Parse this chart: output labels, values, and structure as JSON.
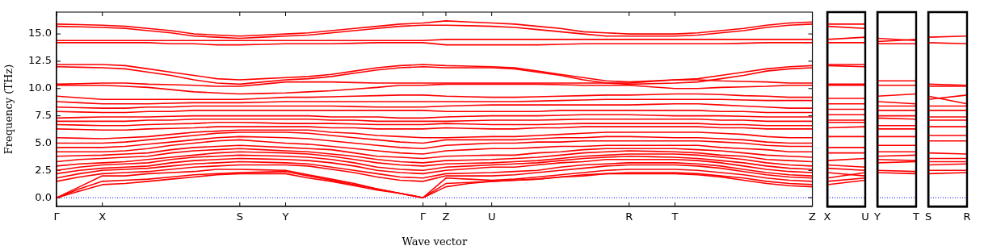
{
  "chart_data": [
    {
      "type": "line",
      "xlabel": "Wave vector",
      "ylabel": "Frequency (THz)",
      "color": "#ff0000",
      "categories": [
        "Γ",
        null,
        "X",
        null,
        null,
        null,
        null,
        null,
        "S",
        null,
        "Y",
        null,
        null,
        null,
        null,
        null,
        "Γ",
        "Z",
        null,
        "U",
        null,
        null,
        null,
        null,
        null,
        "R",
        null,
        "T",
        null,
        null,
        null,
        null,
        null,
        "Z"
      ],
      "ylim": [
        -0.8,
        17
      ],
      "yticks": [
        {
          "value": 0,
          "label": "0.0"
        },
        {
          "value": 2.5,
          "label": "2.5"
        },
        {
          "value": 5,
          "label": "5.0"
        },
        {
          "value": 7.5,
          "label": "7.5"
        },
        {
          "value": 10,
          "label": "10.0"
        },
        {
          "value": 12.5,
          "label": "12.5"
        },
        {
          "value": 15,
          "label": "15.0"
        }
      ],
      "ref_lines": [
        {
          "axis": "y",
          "value": 0,
          "color": "#0000ff",
          "line_style": "dotted"
        }
      ],
      "series": [
        {
          "values": [
            0,
            0.6,
            1.2,
            1.3,
            1.5,
            1.7,
            1.9,
            2.1,
            2.2,
            2.2,
            2.2,
            1.8,
            1.5,
            1.1,
            0.7,
            0.4,
            0,
            1.0,
            1.3,
            1.5,
            1.6,
            1.7,
            1.9,
            2.0,
            2.2,
            2.2,
            2.2,
            2.2,
            2.1,
            1.9,
            1.6,
            1.3,
            1.1,
            1.0
          ]
        },
        {
          "values": [
            0,
            0.8,
            1.5,
            1.6,
            1.7,
            1.9,
            2.1,
            2.2,
            2.3,
            2.35,
            2.4,
            2.0,
            1.6,
            1.2,
            0.8,
            0.4,
            0,
            1.3,
            1.4,
            1.5,
            1.6,
            1.7,
            1.9,
            2.1,
            2.2,
            2.3,
            2.3,
            2.3,
            2.2,
            2.0,
            1.8,
            1.5,
            1.3,
            1.2
          ]
        },
        {
          "values": [
            0,
            1.0,
            2.0,
            2.0,
            2.2,
            2.3,
            2.4,
            2.6,
            2.6,
            2.55,
            2.5,
            2.1,
            1.7,
            1.3,
            0.8,
            0.4,
            0,
            1.8,
            1.7,
            1.6,
            1.7,
            1.9,
            2.1,
            2.3,
            2.5,
            2.6,
            2.6,
            2.6,
            2.5,
            2.3,
            2.1,
            1.8,
            1.6,
            1.5
          ]
        },
        {
          "values": [
            1.5,
            1.9,
            2.2,
            2.3,
            2.4,
            2.6,
            2.8,
            2.9,
            3.0,
            3.0,
            3.0,
            2.9,
            2.6,
            2.3,
            1.9,
            1.6,
            1.5,
            2.0,
            2.0,
            2.0,
            2.1,
            2.3,
            2.5,
            2.7,
            2.9,
            3.0,
            3.0,
            3.0,
            2.9,
            2.7,
            2.4,
            2.1,
            1.9,
            1.8
          ]
        },
        {
          "values": [
            1.8,
            2.2,
            2.5,
            2.6,
            2.7,
            2.9,
            3.1,
            3.2,
            3.3,
            3.25,
            3.2,
            3.1,
            2.8,
            2.5,
            2.2,
            1.9,
            1.8,
            2.2,
            2.25,
            2.3,
            2.4,
            2.5,
            2.8,
            3.0,
            3.1,
            3.2,
            3.2,
            3.2,
            3.1,
            2.9,
            2.6,
            2.3,
            2.1,
            2.0
          ]
        },
        {
          "values": [
            2.2,
            2.5,
            2.7,
            2.8,
            2.9,
            3.2,
            3.4,
            3.5,
            3.6,
            3.55,
            3.5,
            3.4,
            3.2,
            2.9,
            2.5,
            2.3,
            2.2,
            2.5,
            2.65,
            2.8,
            2.8,
            3.0,
            3.2,
            3.3,
            3.5,
            3.5,
            3.5,
            3.5,
            3.4,
            3.2,
            2.9,
            2.6,
            2.4,
            2.3
          ]
        },
        {
          "values": [
            2.5,
            2.8,
            3.0,
            3.1,
            3.2,
            3.5,
            3.7,
            3.8,
            3.9,
            3.85,
            3.8,
            3.7,
            3.5,
            3.2,
            2.8,
            2.6,
            2.5,
            2.8,
            2.9,
            3.0,
            3.1,
            3.2,
            3.4,
            3.6,
            3.7,
            3.8,
            3.75,
            3.7,
            3.6,
            3.4,
            3.2,
            2.9,
            2.7,
            2.6
          ]
        },
        {
          "values": [
            2.9,
            3.1,
            3.2,
            3.3,
            3.5,
            3.7,
            3.9,
            4.1,
            4.2,
            4.15,
            4.1,
            4.0,
            3.8,
            3.5,
            3.2,
            3.0,
            2.9,
            3.1,
            3.15,
            3.2,
            3.3,
            3.4,
            3.6,
            3.8,
            3.9,
            4.0,
            4.0,
            4.0,
            3.9,
            3.7,
            3.5,
            3.2,
            3.0,
            2.9
          ]
        },
        {
          "values": [
            3.3,
            3.5,
            3.6,
            3.7,
            3.8,
            4.1,
            4.3,
            4.4,
            4.5,
            4.4,
            4.3,
            4.2,
            4.0,
            3.8,
            3.5,
            3.3,
            3.2,
            3.4,
            3.45,
            3.5,
            3.6,
            3.7,
            3.9,
            4.1,
            4.2,
            4.3,
            4.25,
            4.2,
            4.1,
            3.9,
            3.8,
            3.5,
            3.4,
            3.3
          ]
        },
        {
          "values": [
            3.8,
            3.85,
            3.9,
            4.0,
            4.1,
            4.4,
            4.6,
            4.7,
            4.8,
            4.7,
            4.6,
            4.5,
            4.4,
            4.1,
            3.8,
            3.7,
            3.6,
            3.8,
            3.85,
            3.9,
            3.9,
            4.1,
            4.2,
            4.4,
            4.5,
            4.5,
            4.5,
            4.5,
            4.4,
            4.3,
            4.1,
            3.9,
            3.8,
            3.7
          ]
        },
        {
          "values": [
            4.2,
            4.2,
            4.2,
            4.3,
            4.5,
            4.8,
            5.0,
            5.2,
            5.3,
            5.15,
            5.0,
            4.9,
            4.7,
            4.5,
            4.3,
            4.1,
            4.0,
            4.3,
            4.4,
            4.5,
            4.5,
            4.6,
            4.7,
            4.7,
            4.8,
            4.8,
            4.8,
            4.8,
            4.8,
            4.6,
            4.5,
            4.4,
            4.2,
            4.2
          ]
        },
        {
          "values": [
            4.6,
            4.6,
            4.6,
            4.7,
            4.9,
            5.1,
            5.3,
            5.5,
            5.6,
            5.55,
            5.5,
            5.4,
            5.2,
            5.0,
            4.8,
            4.6,
            4.5,
            4.8,
            4.9,
            5.0,
            5.0,
            5.1,
            5.1,
            5.2,
            5.2,
            5.2,
            5.2,
            5.2,
            5.2,
            5.1,
            5.0,
            4.8,
            4.7,
            4.7
          ]
        },
        {
          "values": [
            5.0,
            5.0,
            5.0,
            5.1,
            5.3,
            5.5,
            5.7,
            5.9,
            6.0,
            6.0,
            6.0,
            5.9,
            5.7,
            5.5,
            5.3,
            5.1,
            5.0,
            5.3,
            5.3,
            5.3,
            5.3,
            5.4,
            5.5,
            5.5,
            5.6,
            5.6,
            5.55,
            5.5,
            5.5,
            5.4,
            5.3,
            5.1,
            5.0,
            5.0
          ]
        },
        {
          "values": [
            5.5,
            5.45,
            5.4,
            5.5,
            5.6,
            5.8,
            6.0,
            6.1,
            6.2,
            6.2,
            6.2,
            6.2,
            6.0,
            5.9,
            5.7,
            5.6,
            5.5,
            5.5,
            5.55,
            5.6,
            5.6,
            5.7,
            5.8,
            5.9,
            6.0,
            6.0,
            6.0,
            6.0,
            6.0,
            5.9,
            5.8,
            5.6,
            5.5,
            5.5
          ]
        },
        {
          "values": [
            6.3,
            6.25,
            6.2,
            6.2,
            6.3,
            6.35,
            6.4,
            6.5,
            6.5,
            6.5,
            6.5,
            6.5,
            6.4,
            6.4,
            6.3,
            6.3,
            6.3,
            6.4,
            6.35,
            6.3,
            6.3,
            6.4,
            6.4,
            6.5,
            6.5,
            6.5,
            6.5,
            6.5,
            6.5,
            6.4,
            6.4,
            6.3,
            6.3,
            6.3
          ]
        },
        {
          "values": [
            6.7,
            6.65,
            6.6,
            6.6,
            6.7,
            6.75,
            6.8,
            6.9,
            6.9,
            6.85,
            6.8,
            6.8,
            6.8,
            6.75,
            6.7,
            6.7,
            6.7,
            6.8,
            6.75,
            6.7,
            6.7,
            6.7,
            6.75,
            6.8,
            6.8,
            6.8,
            6.8,
            6.8,
            6.8,
            6.7,
            6.7,
            6.6,
            6.6,
            6.6
          ]
        },
        {
          "values": [
            7.0,
            7.0,
            7.0,
            7.0,
            7.1,
            7.1,
            7.2,
            7.2,
            7.2,
            7.2,
            7.2,
            7.2,
            7.1,
            7.1,
            7.0,
            7.0,
            7.0,
            7.0,
            7.05,
            7.1,
            7.1,
            7.1,
            7.15,
            7.2,
            7.2,
            7.2,
            7.2,
            7.2,
            7.2,
            7.1,
            7.1,
            7.0,
            7.0,
            7.0
          ]
        },
        {
          "values": [
            7.3,
            7.35,
            7.4,
            7.4,
            7.4,
            7.45,
            7.5,
            7.5,
            7.5,
            7.5,
            7.5,
            7.5,
            7.4,
            7.4,
            7.4,
            7.3,
            7.3,
            7.4,
            7.45,
            7.5,
            7.5,
            7.5,
            7.55,
            7.6,
            7.6,
            7.6,
            7.55,
            7.5,
            7.5,
            7.5,
            7.45,
            7.4,
            7.4,
            7.4
          ]
        },
        {
          "values": [
            7.9,
            7.85,
            7.8,
            7.8,
            7.9,
            7.9,
            8.0,
            8.0,
            8.0,
            8.0,
            8.0,
            8.0,
            8.0,
            8.0,
            8.0,
            8.0,
            8.0,
            7.9,
            7.9,
            7.9,
            7.9,
            7.9,
            8.0,
            8.0,
            8.0,
            8.0,
            8.0,
            8.0,
            8.0,
            7.9,
            7.9,
            7.8,
            7.8,
            7.8
          ]
        },
        {
          "values": [
            8.3,
            8.25,
            8.2,
            8.2,
            8.3,
            8.3,
            8.4,
            8.4,
            8.4,
            8.4,
            8.4,
            8.4,
            8.4,
            8.35,
            8.3,
            8.3,
            8.3,
            8.4,
            8.45,
            8.5,
            8.5,
            8.5,
            8.5,
            8.5,
            8.5,
            8.5,
            8.55,
            8.6,
            8.6,
            8.5,
            8.4,
            8.3,
            8.2,
            8.2
          ]
        },
        {
          "values": [
            8.8,
            8.7,
            8.6,
            8.6,
            8.6,
            8.65,
            8.7,
            8.7,
            8.7,
            8.75,
            8.8,
            8.8,
            8.8,
            8.8,
            8.8,
            8.8,
            8.8,
            8.8,
            8.8,
            8.8,
            8.8,
            8.85,
            8.9,
            8.95,
            9.0,
            9.0,
            9.0,
            9.0,
            9.0,
            9.0,
            8.95,
            8.9,
            8.9,
            8.9
          ]
        },
        {
          "values": [
            9.3,
            9.15,
            9.0,
            9.0,
            9.0,
            9.0,
            9.0,
            9.0,
            9.0,
            9.1,
            9.2,
            9.2,
            9.25,
            9.3,
            9.35,
            9.4,
            9.4,
            9.3,
            9.25,
            9.2,
            9.2,
            9.25,
            9.3,
            9.35,
            9.4,
            9.4,
            9.45,
            9.5,
            9.5,
            9.45,
            9.35,
            9.3,
            9.2,
            9.2
          ]
        },
        {
          "values": [
            10.3,
            10.3,
            10.3,
            10.2,
            10.1,
            9.9,
            9.7,
            9.6,
            9.5,
            9.55,
            9.6,
            9.7,
            9.8,
            9.95,
            10.1,
            10.3,
            10.3,
            10.4,
            10.4,
            10.4,
            10.4,
            10.4,
            10.35,
            10.3,
            10.3,
            10.3,
            10.15,
            10.0,
            10.0,
            10.1,
            10.15,
            10.2,
            10.3,
            10.3
          ]
        },
        {
          "values": [
            10.4,
            10.45,
            10.5,
            10.5,
            10.4,
            10.35,
            10.3,
            10.2,
            10.2,
            10.4,
            10.6,
            10.6,
            10.6,
            10.55,
            10.5,
            10.5,
            10.5,
            10.5,
            10.5,
            10.5,
            10.5,
            10.5,
            10.5,
            10.5,
            10.5,
            10.5,
            10.65,
            10.8,
            10.8,
            10.7,
            10.65,
            10.6,
            10.5,
            10.5
          ]
        },
        {
          "values": [
            12.0,
            11.95,
            11.9,
            11.8,
            11.5,
            11.2,
            10.8,
            10.5,
            10.4,
            10.6,
            10.8,
            10.9,
            11.1,
            11.4,
            11.7,
            11.9,
            12.0,
            11.9,
            11.9,
            11.9,
            11.8,
            11.5,
            11.2,
            10.8,
            10.5,
            10.4,
            10.45,
            10.5,
            10.6,
            10.9,
            11.2,
            11.6,
            11.8,
            11.9
          ]
        },
        {
          "values": [
            12.2,
            12.2,
            12.2,
            12.1,
            11.8,
            11.5,
            11.2,
            10.9,
            10.8,
            10.9,
            11.0,
            11.1,
            11.3,
            11.6,
            11.9,
            12.1,
            12.2,
            12.1,
            12.05,
            12.0,
            11.9,
            11.6,
            11.3,
            11.0,
            10.7,
            10.6,
            10.7,
            10.8,
            10.9,
            11.2,
            11.5,
            11.8,
            12.0,
            12.1
          ]
        },
        {
          "values": [
            14.2,
            14.2,
            14.2,
            14.2,
            14.2,
            14.1,
            14.1,
            14.0,
            14.0,
            14.05,
            14.1,
            14.1,
            14.1,
            14.15,
            14.2,
            14.2,
            14.2,
            14.0,
            14.0,
            14.0,
            14.0,
            14.0,
            14.05,
            14.1,
            14.1,
            14.1,
            14.1,
            14.1,
            14.1,
            14.1,
            14.15,
            14.2,
            14.2,
            14.2
          ]
        },
        {
          "values": [
            14.4,
            14.4,
            14.4,
            14.4,
            14.4,
            14.4,
            14.4,
            14.4,
            14.4,
            14.4,
            14.4,
            14.4,
            14.4,
            14.4,
            14.4,
            14.4,
            14.4,
            14.5,
            14.5,
            14.5,
            14.5,
            14.5,
            14.5,
            14.5,
            14.5,
            14.5,
            14.5,
            14.5,
            14.5,
            14.5,
            14.5,
            14.5,
            14.5,
            14.5
          ]
        },
        {
          "values": [
            15.7,
            15.65,
            15.6,
            15.5,
            15.3,
            15.1,
            14.8,
            14.7,
            14.6,
            14.7,
            14.8,
            14.9,
            15.1,
            15.3,
            15.5,
            15.7,
            15.8,
            15.8,
            15.75,
            15.7,
            15.6,
            15.4,
            15.2,
            15.0,
            14.8,
            14.8,
            14.8,
            14.8,
            14.9,
            15.1,
            15.3,
            15.6,
            15.8,
            15.9
          ]
        },
        {
          "values": [
            15.9,
            15.85,
            15.8,
            15.7,
            15.5,
            15.3,
            15.0,
            14.9,
            14.8,
            14.9,
            15.0,
            15.1,
            15.3,
            15.5,
            15.7,
            15.9,
            16.0,
            16.2,
            16.1,
            16.0,
            15.9,
            15.7,
            15.5,
            15.2,
            15.1,
            15.0,
            15.0,
            15.0,
            15.1,
            15.3,
            15.5,
            15.8,
            16.0,
            16.1
          ]
        }
      ]
    },
    {
      "type": "line",
      "color": "#ff0000",
      "categories": [
        "X",
        "U"
      ],
      "ylim": [
        -0.8,
        17
      ],
      "tick_labels": "x",
      "ref_lines": [
        {
          "axis": "y",
          "value": 0,
          "color": "#0000ff",
          "line_style": "dotted"
        }
      ],
      "series": [
        {
          "values": [
            1.2,
            1.6
          ]
        },
        {
          "values": [
            1.5,
            1.8
          ]
        },
        {
          "values": [
            1.8,
            2.3
          ]
        },
        {
          "values": [
            2.3,
            2.0
          ]
        },
        {
          "values": [
            2.7,
            2.5
          ]
        },
        {
          "values": [
            3.0,
            2.8
          ]
        },
        {
          "values": [
            3.4,
            3.6
          ]
        },
        {
          "values": [
            4.1,
            4.1
          ]
        },
        {
          "values": [
            4.6,
            4.6
          ]
        },
        {
          "values": [
            5.6,
            5.6
          ]
        },
        {
          "values": [
            6.4,
            6.5
          ]
        },
        {
          "values": [
            6.9,
            6.9
          ]
        },
        {
          "values": [
            7.1,
            7.1
          ]
        },
        {
          "values": [
            7.6,
            7.6
          ]
        },
        {
          "values": [
            8.1,
            8.1
          ]
        },
        {
          "values": [
            8.6,
            8.6
          ]
        },
        {
          "values": [
            9.1,
            9.1
          ]
        },
        {
          "values": [
            10.3,
            10.3
          ]
        },
        {
          "values": [
            10.4,
            10.4
          ]
        },
        {
          "values": [
            12.1,
            12.0
          ]
        },
        {
          "values": [
            12.2,
            12.2
          ]
        },
        {
          "values": [
            14.2,
            14.2
          ]
        },
        {
          "values": [
            14.5,
            14.7
          ]
        },
        {
          "values": [
            15.7,
            15.5
          ]
        },
        {
          "values": [
            15.9,
            15.9
          ]
        }
      ]
    },
    {
      "type": "line",
      "color": "#ff0000",
      "categories": [
        "Y",
        "T"
      ],
      "ylim": [
        -0.8,
        17
      ],
      "tick_labels": "x",
      "ref_lines": [
        {
          "axis": "y",
          "value": 0,
          "color": "#0000ff",
          "line_style": "dotted"
        }
      ],
      "series": [
        {
          "values": [
            2.3,
            2.2
          ]
        },
        {
          "values": [
            2.5,
            2.4
          ]
        },
        {
          "values": [
            3.2,
            3.3
          ]
        },
        {
          "values": [
            3.5,
            3.4
          ]
        },
        {
          "values": [
            3.8,
            3.9
          ]
        },
        {
          "values": [
            4.2,
            4.2
          ]
        },
        {
          "values": [
            4.8,
            4.8
          ]
        },
        {
          "values": [
            5.6,
            5.6
          ]
        },
        {
          "values": [
            6.3,
            6.3
          ]
        },
        {
          "values": [
            6.6,
            6.6
          ]
        },
        {
          "values": [
            7.3,
            7.2
          ]
        },
        {
          "values": [
            7.5,
            7.5
          ]
        },
        {
          "values": [
            8.0,
            8.0
          ]
        },
        {
          "values": [
            8.4,
            8.4
          ]
        },
        {
          "values": [
            8.8,
            8.6
          ]
        },
        {
          "values": [
            9.3,
            9.5
          ]
        },
        {
          "values": [
            10.3,
            10.3
          ]
        },
        {
          "values": [
            10.7,
            10.7
          ]
        },
        {
          "values": [
            14.1,
            14.1
          ]
        },
        {
          "values": [
            14.3,
            14.5
          ]
        },
        {
          "values": [
            14.6,
            14.4
          ]
        }
      ]
    },
    {
      "type": "line",
      "color": "#ff0000",
      "categories": [
        "S",
        "R"
      ],
      "ylim": [
        -0.8,
        17
      ],
      "tick_labels": "x",
      "ref_lines": [
        {
          "axis": "y",
          "value": 0,
          "color": "#0000ff",
          "line_style": "dotted"
        }
      ],
      "series": [
        {
          "values": [
            2.2,
            2.3
          ]
        },
        {
          "values": [
            2.5,
            2.5
          ]
        },
        {
          "values": [
            3.0,
            3.1
          ]
        },
        {
          "values": [
            3.3,
            3.3
          ]
        },
        {
          "values": [
            3.6,
            3.6
          ]
        },
        {
          "values": [
            4.1,
            4.0
          ]
        },
        {
          "values": [
            5.2,
            5.2
          ]
        },
        {
          "values": [
            5.7,
            5.7
          ]
        },
        {
          "values": [
            6.5,
            6.5
          ]
        },
        {
          "values": [
            7.1,
            7.1
          ]
        },
        {
          "values": [
            7.4,
            7.4
          ]
        },
        {
          "values": [
            8.0,
            8.0
          ]
        },
        {
          "values": [
            8.4,
            8.4
          ]
        },
        {
          "values": [
            9.0,
            9.4
          ]
        },
        {
          "values": [
            9.3,
            8.6
          ]
        },
        {
          "values": [
            10.2,
            10.2
          ]
        },
        {
          "values": [
            10.4,
            10.3
          ]
        },
        {
          "values": [
            14.2,
            14.1
          ]
        },
        {
          "values": [
            14.7,
            14.8
          ]
        }
      ]
    }
  ]
}
